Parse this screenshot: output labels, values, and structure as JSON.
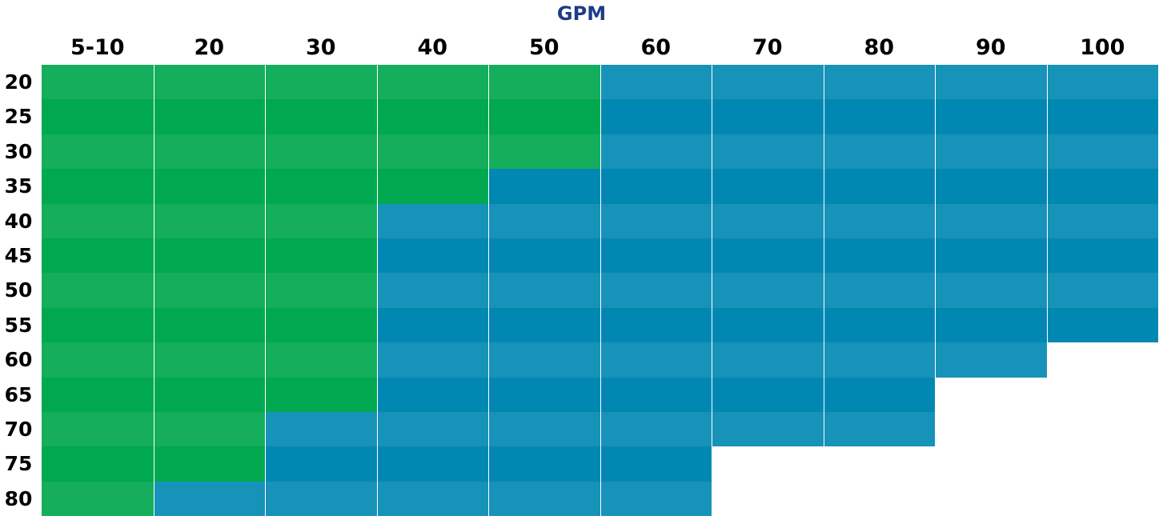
{
  "chart_data": {
    "type": "heatmap",
    "title": "GPM",
    "xlabel": "GPM",
    "ylabel": "",
    "columns": [
      "5-10",
      "20",
      "30",
      "40",
      "50",
      "60",
      "70",
      "80",
      "90",
      "100"
    ],
    "rows": [
      "20",
      "25",
      "30",
      "35",
      "40",
      "45",
      "50",
      "55",
      "60",
      "65",
      "70",
      "75",
      "80"
    ],
    "green_rows_per_column": [
      13,
      12,
      10,
      4,
      3,
      0,
      0,
      0,
      0,
      0
    ],
    "total_rows_per_column": [
      13,
      13,
      13,
      13,
      13,
      13,
      11,
      11,
      9,
      8
    ],
    "colors": {
      "title": "#1f3a8a",
      "green_light": "#14ae5c",
      "green_dark": "#00a84f",
      "blue_light": "#1792b9",
      "blue_dark": "#0088b2"
    }
  }
}
